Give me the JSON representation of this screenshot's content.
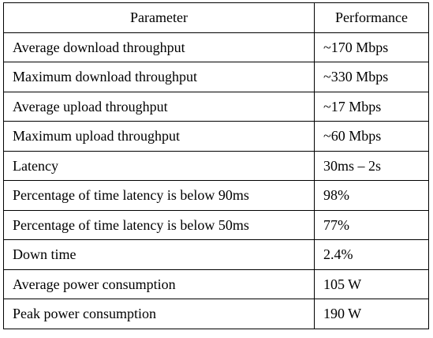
{
  "table": {
    "headers": [
      "Parameter",
      "Performance"
    ],
    "rows": [
      [
        "Average download throughput",
        "~170 Mbps"
      ],
      [
        "Maximum download throughput",
        "~330 Mbps"
      ],
      [
        "Average upload throughput",
        "~17 Mbps"
      ],
      [
        "Maximum upload throughput",
        "~60 Mbps"
      ],
      [
        "Latency",
        "30ms – 2s"
      ],
      [
        "Percentage of time latency is below 90ms",
        "98%"
      ],
      [
        "Percentage of time latency is below 50ms",
        "77%"
      ],
      [
        "Down time",
        "2.4%"
      ],
      [
        "Average power consumption",
        "105 W"
      ],
      [
        "Peak power consumption",
        "190 W"
      ]
    ]
  }
}
